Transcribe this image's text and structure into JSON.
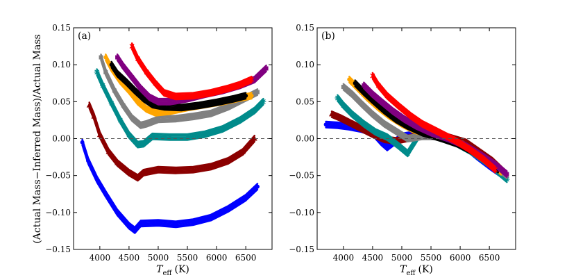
{
  "chart_data": [
    {
      "type": "scatter",
      "panel_label": "(a)",
      "xlabel_main": "T",
      "xlabel_sub": "eff",
      "xlabel_unit": "(K)",
      "ylabel": "(Actual Mass−Inferred Mass)/Actual Mass",
      "xlim": [
        3550,
        6950
      ],
      "ylim": [
        -0.15,
        0.15
      ],
      "xticks": [
        4000,
        4500,
        5000,
        5500,
        6000,
        6500
      ],
      "yticks": [
        -0.15,
        -0.1,
        -0.05,
        0.0,
        0.05,
        0.1,
        0.15
      ],
      "ytick_labels": [
        "−0.15",
        "−0.10",
        "−0.05",
        "0.00",
        "0.05",
        "0.10",
        "0.15"
      ],
      "reference_line": 0.0,
      "series": [
        {
          "name": "blue",
          "color": "#0000ff",
          "marker": "o",
          "x": [
            3700,
            3800,
            3950,
            4100,
            4300,
            4500,
            4600,
            4700,
            5000,
            5300,
            5600,
            5900,
            6200,
            6500,
            6700
          ],
          "y": [
            -0.005,
            -0.03,
            -0.055,
            -0.075,
            -0.1,
            -0.118,
            -0.124,
            -0.115,
            -0.114,
            -0.116,
            -0.113,
            -0.107,
            -0.095,
            -0.08,
            -0.065
          ]
        },
        {
          "name": "darkred",
          "color": "#8b0000",
          "marker": "^",
          "x": [
            3820,
            3900,
            4000,
            4150,
            4300,
            4500,
            4650,
            4750,
            5000,
            5300,
            5600,
            5900,
            6200,
            6450,
            6650
          ],
          "y": [
            0.045,
            0.03,
            0.005,
            -0.018,
            -0.033,
            -0.046,
            -0.053,
            -0.046,
            -0.042,
            -0.043,
            -0.042,
            -0.038,
            -0.03,
            -0.018,
            0.0
          ]
        },
        {
          "name": "teal",
          "color": "#008b8b",
          "marker": "*",
          "x": [
            3950,
            4050,
            4200,
            4350,
            4500,
            4650,
            4750,
            4900,
            5200,
            5500,
            5800,
            6100,
            6400,
            6650,
            6800
          ],
          "y": [
            0.09,
            0.072,
            0.048,
            0.025,
            0.005,
            -0.008,
            -0.007,
            0.003,
            0.002,
            0.002,
            0.006,
            0.013,
            0.025,
            0.038,
            0.05
          ]
        },
        {
          "name": "gray",
          "color": "#808080",
          "marker": "s",
          "x": [
            4020,
            4100,
            4250,
            4400,
            4550,
            4700,
            4800,
            5000,
            5300,
            5600,
            5900,
            6200,
            6500,
            6700
          ],
          "y": [
            0.11,
            0.09,
            0.065,
            0.045,
            0.028,
            0.018,
            0.02,
            0.026,
            0.027,
            0.03,
            0.034,
            0.043,
            0.055,
            0.063
          ]
        },
        {
          "name": "orange",
          "color": "#ffa500",
          "marker": "o",
          "x": [
            4100,
            4200,
            4350,
            4500,
            4650,
            4800,
            4950,
            5200,
            5500,
            5800,
            6100,
            6400,
            6600
          ],
          "y": [
            0.11,
            0.095,
            0.078,
            0.065,
            0.05,
            0.04,
            0.035,
            0.037,
            0.042,
            0.046,
            0.05,
            0.055,
            0.058
          ]
        },
        {
          "name": "black",
          "color": "#000000",
          "marker": "o",
          "x": [
            4200,
            4300,
            4450,
            4600,
            4750,
            4900,
            5100,
            5400,
            5700,
            6000,
            6300,
            6500
          ],
          "y": [
            0.1,
            0.088,
            0.077,
            0.065,
            0.054,
            0.046,
            0.043,
            0.042,
            0.045,
            0.049,
            0.054,
            0.058
          ]
        },
        {
          "name": "purple",
          "color": "#800080",
          "marker": "s",
          "x": [
            4300,
            4400,
            4550,
            4700,
            4850,
            5000,
            5200,
            5500,
            5800,
            6100,
            6400,
            6650,
            6850
          ],
          "y": [
            0.11,
            0.098,
            0.083,
            0.068,
            0.056,
            0.05,
            0.05,
            0.054,
            0.06,
            0.065,
            0.072,
            0.08,
            0.095
          ]
        },
        {
          "name": "red",
          "color": "#ff0000",
          "marker": "x",
          "x": [
            4550,
            4650,
            4800,
            4950,
            5100,
            5300,
            5600,
            5900,
            6200,
            6400,
            6600
          ],
          "y": [
            0.125,
            0.108,
            0.09,
            0.075,
            0.062,
            0.057,
            0.058,
            0.062,
            0.068,
            0.073,
            0.08
          ]
        }
      ]
    },
    {
      "type": "scatter",
      "panel_label": "(b)",
      "xlabel_main": "T",
      "xlabel_sub": "eff",
      "xlabel_unit": "(K)",
      "xlim": [
        3550,
        6950
      ],
      "ylim": [
        -0.15,
        0.15
      ],
      "xticks": [
        4000,
        4500,
        5000,
        5500,
        6000,
        6500
      ],
      "yticks": [
        -0.15,
        -0.1,
        -0.05,
        0.0,
        0.05,
        0.1,
        0.15
      ],
      "ytick_labels": [
        "−0.15",
        "−0.10",
        "−0.05",
        "0.00",
        "0.05",
        "0.10",
        "0.15"
      ],
      "reference_line": 0.0,
      "series": [
        {
          "name": "blue",
          "color": "#0000ff",
          "marker": "o",
          "x": [
            3700,
            3900,
            4100,
            4300,
            4500,
            4650,
            4750,
            5000,
            5300,
            5600,
            5900,
            6100,
            6300,
            6500,
            6700
          ],
          "y": [
            0.019,
            0.018,
            0.016,
            0.013,
            0.008,
            -0.005,
            -0.012,
            0.003,
            0.007,
            0.004,
            -0.002,
            -0.012,
            -0.025,
            -0.037,
            -0.048
          ]
        },
        {
          "name": "darkred",
          "color": "#8b0000",
          "marker": "^",
          "x": [
            3800,
            3950,
            4100,
            4300,
            4500,
            4700,
            4900,
            5200,
            5500,
            5800,
            6100,
            6300,
            6550,
            6750
          ],
          "y": [
            0.033,
            0.028,
            0.022,
            0.014,
            0.006,
            -0.001,
            -0.003,
            0.002,
            0.005,
            0.002,
            -0.005,
            -0.016,
            -0.03,
            -0.045
          ]
        },
        {
          "name": "teal",
          "color": "#008b8b",
          "marker": "*",
          "x": [
            3900,
            4000,
            4150,
            4350,
            4550,
            4750,
            4950,
            5100,
            5300,
            5600,
            5900,
            6200,
            6500,
            6800
          ],
          "y": [
            0.055,
            0.045,
            0.033,
            0.02,
            0.009,
            0.002,
            -0.01,
            -0.02,
            0.005,
            0.005,
            -0.005,
            -0.018,
            -0.035,
            -0.055
          ]
        },
        {
          "name": "gray",
          "color": "#808080",
          "marker": "s",
          "x": [
            4000,
            4150,
            4300,
            4500,
            4700,
            4900,
            5100,
            5350,
            5650,
            5950,
            6250,
            6550,
            6800
          ],
          "y": [
            0.07,
            0.06,
            0.048,
            0.033,
            0.02,
            0.01,
            0.0,
            0.003,
            0.003,
            -0.006,
            -0.018,
            -0.035,
            -0.05
          ]
        },
        {
          "name": "orange",
          "color": "#ffa500",
          "marker": "o",
          "x": [
            4100,
            4250,
            4400,
            4600,
            4800,
            5000,
            5200,
            5450,
            5750,
            6050,
            6300,
            6550,
            6700
          ],
          "y": [
            0.08,
            0.068,
            0.056,
            0.042,
            0.03,
            0.02,
            0.012,
            0.006,
            0.0,
            -0.008,
            -0.02,
            -0.035,
            -0.045
          ]
        },
        {
          "name": "black",
          "color": "#000000",
          "marker": "o",
          "x": [
            4200,
            4350,
            4500,
            4700,
            4900,
            5100,
            5350,
            5650,
            5950,
            6200,
            6450,
            6650
          ],
          "y": [
            0.075,
            0.063,
            0.052,
            0.038,
            0.026,
            0.017,
            0.008,
            0.001,
            -0.007,
            -0.017,
            -0.03,
            -0.042
          ]
        },
        {
          "name": "purple",
          "color": "#800080",
          "marker": "s",
          "x": [
            4350,
            4500,
            4650,
            4850,
            5050,
            5250,
            5500,
            5800,
            6100,
            6350,
            6600,
            6800
          ],
          "y": [
            0.072,
            0.06,
            0.05,
            0.037,
            0.026,
            0.017,
            0.008,
            0.0,
            -0.01,
            -0.022,
            -0.035,
            -0.048
          ]
        },
        {
          "name": "red",
          "color": "#ff0000",
          "marker": "x",
          "x": [
            4500,
            4600,
            4750,
            4950,
            5150,
            5350,
            5600,
            5900,
            6150,
            6400,
            6600
          ],
          "y": [
            0.085,
            0.072,
            0.058,
            0.044,
            0.031,
            0.02,
            0.01,
            -0.002,
            -0.014,
            -0.028,
            -0.042
          ]
        }
      ]
    }
  ]
}
